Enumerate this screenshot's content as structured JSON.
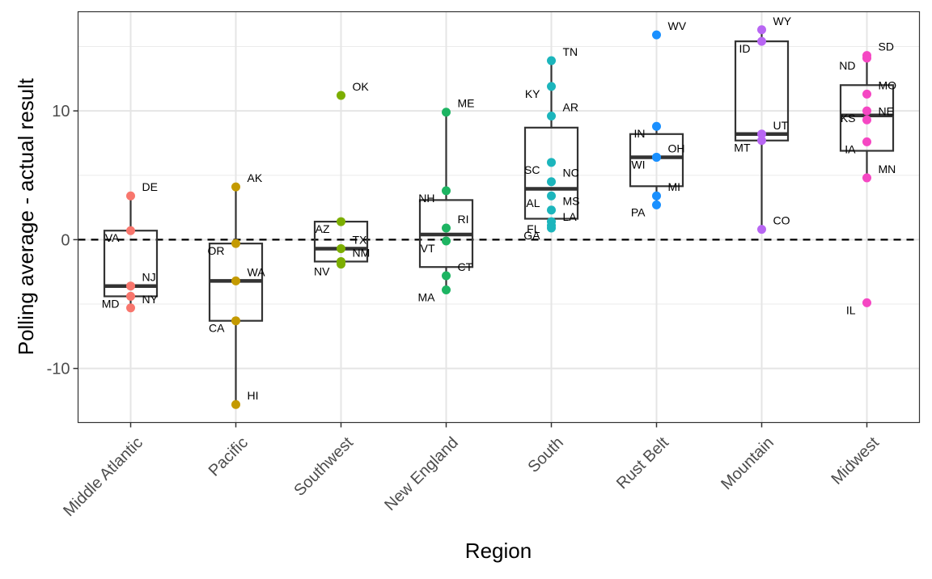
{
  "chart_data": {
    "type": "box",
    "title": "",
    "xlabel": "Region",
    "ylabel": "Polling average - actual result",
    "ylim": [
      -14.2,
      17.7
    ],
    "yticks": [
      -10,
      0,
      10
    ],
    "ytick_labels": [
      "-10",
      "0",
      "10"
    ],
    "reference_line": {
      "y": 0,
      "style": "dashed"
    },
    "grid": true,
    "legend": "none",
    "categories": [
      "Middle Atlantic",
      "Pacific",
      "Southwest",
      "New England",
      "South",
      "Rust Belt",
      "Mountain",
      "Midwest"
    ],
    "series": [
      {
        "name": "Middle Atlantic",
        "color": "#F8766D",
        "points": [
          {
            "label": "DE",
            "value": 3.4
          },
          {
            "label": "VA",
            "value": 0.7
          },
          {
            "label": "NJ",
            "value": -3.6
          },
          {
            "label": "MD",
            "value": -4.4
          },
          {
            "label": "NY",
            "value": -5.3
          }
        ]
      },
      {
        "name": "Pacific",
        "color": "#C49A00",
        "points": [
          {
            "label": "AK",
            "value": 4.1
          },
          {
            "label": "OR",
            "value": -0.3
          },
          {
            "label": "WA",
            "value": -3.2
          },
          {
            "label": "CA",
            "value": -6.3
          },
          {
            "label": "HI",
            "value": -12.8
          }
        ]
      },
      {
        "name": "Southwest",
        "color": "#7CAE00",
        "points": [
          {
            "label": "OK",
            "value": 11.2
          },
          {
            "label": "AZ",
            "value": 1.4
          },
          {
            "label": "TX",
            "value": -0.7
          },
          {
            "label": "NV",
            "value": -1.9
          },
          {
            "label": "NM",
            "value": -1.7
          }
        ]
      },
      {
        "name": "New England",
        "color": "#1DB462",
        "points": [
          {
            "label": "ME",
            "value": 9.9
          },
          {
            "label": "NH",
            "value": 3.8
          },
          {
            "label": "RI",
            "value": 0.9
          },
          {
            "label": "VT",
            "value": -0.1
          },
          {
            "label": "CT",
            "value": -2.8
          },
          {
            "label": "MA",
            "value": -3.9
          }
        ]
      },
      {
        "name": "South",
        "color": "#1CB5BC",
        "points": [
          {
            "label": "TN",
            "value": 13.9
          },
          {
            "label": "KY",
            "value": 11.9
          },
          {
            "label": "AR",
            "value": 9.6
          },
          {
            "label": "SC",
            "value": 6.0
          },
          {
            "label": "NC",
            "value": 4.5
          },
          {
            "label": "AL",
            "value": 3.4
          },
          {
            "label": "MS",
            "value": 2.3
          },
          {
            "label": "FL",
            "value": 1.4
          },
          {
            "label": "LA",
            "value": 1.1
          },
          {
            "label": "GA",
            "value": 0.9
          }
        ]
      },
      {
        "name": "Rust Belt",
        "color": "#1A90FF",
        "points": [
          {
            "label": "WV",
            "value": 15.9
          },
          {
            "label": "IN",
            "value": 8.8
          },
          {
            "label": "OH",
            "value": 6.4
          },
          {
            "label": "WI",
            "value": 6.4
          },
          {
            "label": "MI",
            "value": 3.4
          },
          {
            "label": "PA",
            "value": 2.7
          }
        ]
      },
      {
        "name": "Mountain",
        "color": "#B866F3",
        "points": [
          {
            "label": "WY",
            "value": 16.3
          },
          {
            "label": "ID",
            "value": 15.4
          },
          {
            "label": "UT",
            "value": 8.2
          },
          {
            "label": "MT",
            "value": 7.7
          },
          {
            "label": "CO",
            "value": 0.8
          }
        ]
      },
      {
        "name": "Midwest",
        "color": "#F547C3",
        "points": [
          {
            "label": "SD",
            "value": 14.3
          },
          {
            "label": "ND",
            "value": 14.1
          },
          {
            "label": "MO",
            "value": 11.3
          },
          {
            "label": "KS",
            "value": 10.0
          },
          {
            "label": "NE",
            "value": 9.3
          },
          {
            "label": "IA",
            "value": 7.6
          },
          {
            "label": "MN",
            "value": 4.8
          },
          {
            "label": "IL",
            "value": -4.9
          }
        ]
      }
    ]
  }
}
